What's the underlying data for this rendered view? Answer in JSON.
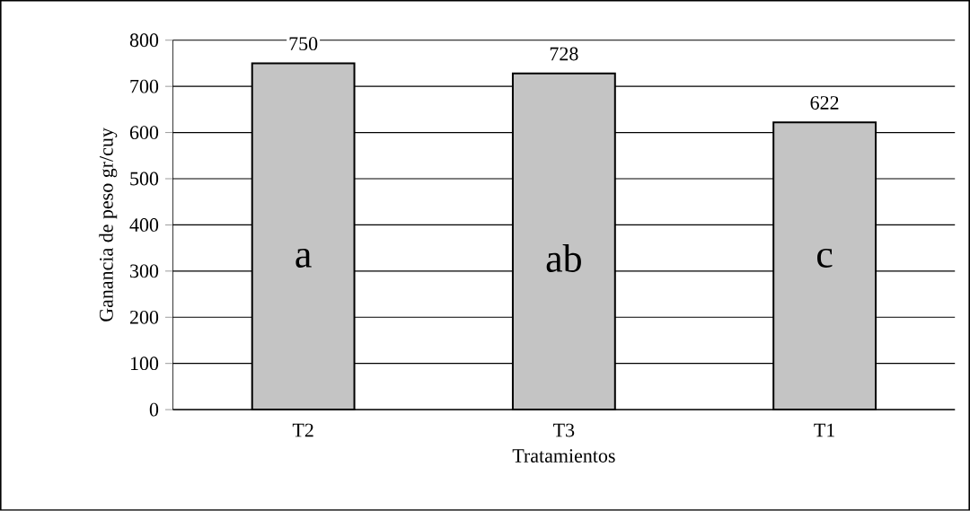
{
  "chart_data": {
    "type": "bar",
    "xlabel": "Tratamientos",
    "ylabel": "Ganancia de peso gr/cuy",
    "categories": [
      "T2",
      "T3",
      "T1"
    ],
    "values": [
      750,
      728,
      622
    ],
    "color": "#c4c4c4",
    "data_labels": true,
    "ylim": [
      0,
      800
    ],
    "yticks": [
      0,
      100,
      200,
      300,
      400,
      500,
      600,
      700,
      800
    ],
    "grid": "y",
    "annotations": [
      "a",
      "ab",
      "c"
    ]
  }
}
